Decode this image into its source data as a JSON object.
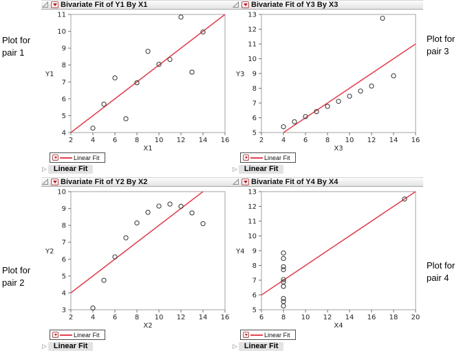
{
  "side_labels": [
    {
      "text": "Plot for pair 1"
    },
    {
      "text": "Plot for pair 3"
    },
    {
      "text": "Plot for pair 2"
    },
    {
      "text": "Plot for pair 4"
    }
  ],
  "colors": {
    "fit_line": "#e0414f",
    "marker_outline": "#3f3f3f",
    "red_button_triangle": "#c01020",
    "node_background": "#e3e3e3"
  },
  "chart_data": [
    {
      "type": "scatter",
      "position": "top-left",
      "title": "Bivariate Fit of Y1 By X1",
      "xlabel": "X1",
      "ylabel": "Y1",
      "xlim": [
        2,
        16
      ],
      "ylim": [
        4,
        11
      ],
      "xticks": [
        2,
        4,
        6,
        8,
        10,
        12,
        14,
        16
      ],
      "yticks": [
        4,
        5,
        6,
        7,
        8,
        9,
        10,
        11
      ],
      "x": [
        10,
        8,
        13,
        9,
        11,
        14,
        6,
        4,
        12,
        7,
        5
      ],
      "y": [
        8.04,
        6.95,
        7.58,
        8.81,
        8.33,
        9.96,
        7.24,
        4.26,
        10.84,
        4.82,
        5.68
      ],
      "fit_line": {
        "x1": 2,
        "y1": 4,
        "x2": 16,
        "y2": 11
      },
      "legend_label": "Linear Fit",
      "node_label": "Linear Fit"
    },
    {
      "type": "scatter",
      "position": "top-right",
      "title": "Bivariate Fit of Y3 By X3",
      "xlabel": "X3",
      "ylabel": "Y3",
      "xlim": [
        2,
        16
      ],
      "ylim": [
        5,
        13
      ],
      "xticks": [
        2,
        4,
        6,
        8,
        10,
        12,
        14,
        16
      ],
      "yticks": [
        5,
        6,
        7,
        8,
        9,
        10,
        11,
        12,
        13
      ],
      "x": [
        10,
        8,
        13,
        9,
        11,
        14,
        6,
        4,
        12,
        7,
        5
      ],
      "y": [
        7.46,
        6.77,
        12.74,
        7.11,
        7.81,
        8.84,
        6.08,
        5.39,
        8.15,
        6.42,
        5.73
      ],
      "fit_line": {
        "x1": 4,
        "y1": 5,
        "x2": 16,
        "y2": 11
      },
      "legend_label": "Linear Fit",
      "node_label": "Linear Fit"
    },
    {
      "type": "scatter",
      "position": "bottom-left",
      "title": "Bivariate Fit of Y2 By X2",
      "xlabel": "X2",
      "ylabel": "Y2",
      "xlim": [
        2,
        16
      ],
      "ylim": [
        3,
        10
      ],
      "xticks": [
        2,
        4,
        6,
        8,
        10,
        12,
        14,
        16
      ],
      "yticks": [
        3,
        4,
        5,
        6,
        7,
        8,
        9,
        10
      ],
      "x": [
        10,
        8,
        13,
        9,
        11,
        14,
        6,
        4,
        12,
        7,
        5
      ],
      "y": [
        9.14,
        8.14,
        8.74,
        8.77,
        9.26,
        8.1,
        6.13,
        3.1,
        9.13,
        7.26,
        4.74
      ],
      "fit_line": {
        "x1": 2,
        "y1": 4,
        "x2": 14,
        "y2": 10
      },
      "legend_label": "Linear Fit",
      "node_label": "Linear Fit"
    },
    {
      "type": "scatter",
      "position": "bottom-right",
      "title": "Bivariate Fit of Y4 By X4",
      "xlabel": "X4",
      "ylabel": "Y4",
      "xlim": [
        6,
        20
      ],
      "ylim": [
        5,
        13
      ],
      "xticks": [
        6,
        8,
        10,
        12,
        14,
        16,
        18,
        20
      ],
      "yticks": [
        5,
        6,
        7,
        8,
        9,
        10,
        11,
        12,
        13
      ],
      "x": [
        8,
        8,
        8,
        8,
        8,
        8,
        8,
        19,
        8,
        8,
        8
      ],
      "y": [
        6.58,
        5.76,
        7.71,
        8.84,
        8.47,
        7.04,
        5.25,
        12.5,
        5.56,
        7.91,
        6.89
      ],
      "fit_line": {
        "x1": 6,
        "y1": 6,
        "x2": 20,
        "y2": 13
      },
      "legend_label": "Linear Fit",
      "node_label": "Linear Fit"
    }
  ]
}
